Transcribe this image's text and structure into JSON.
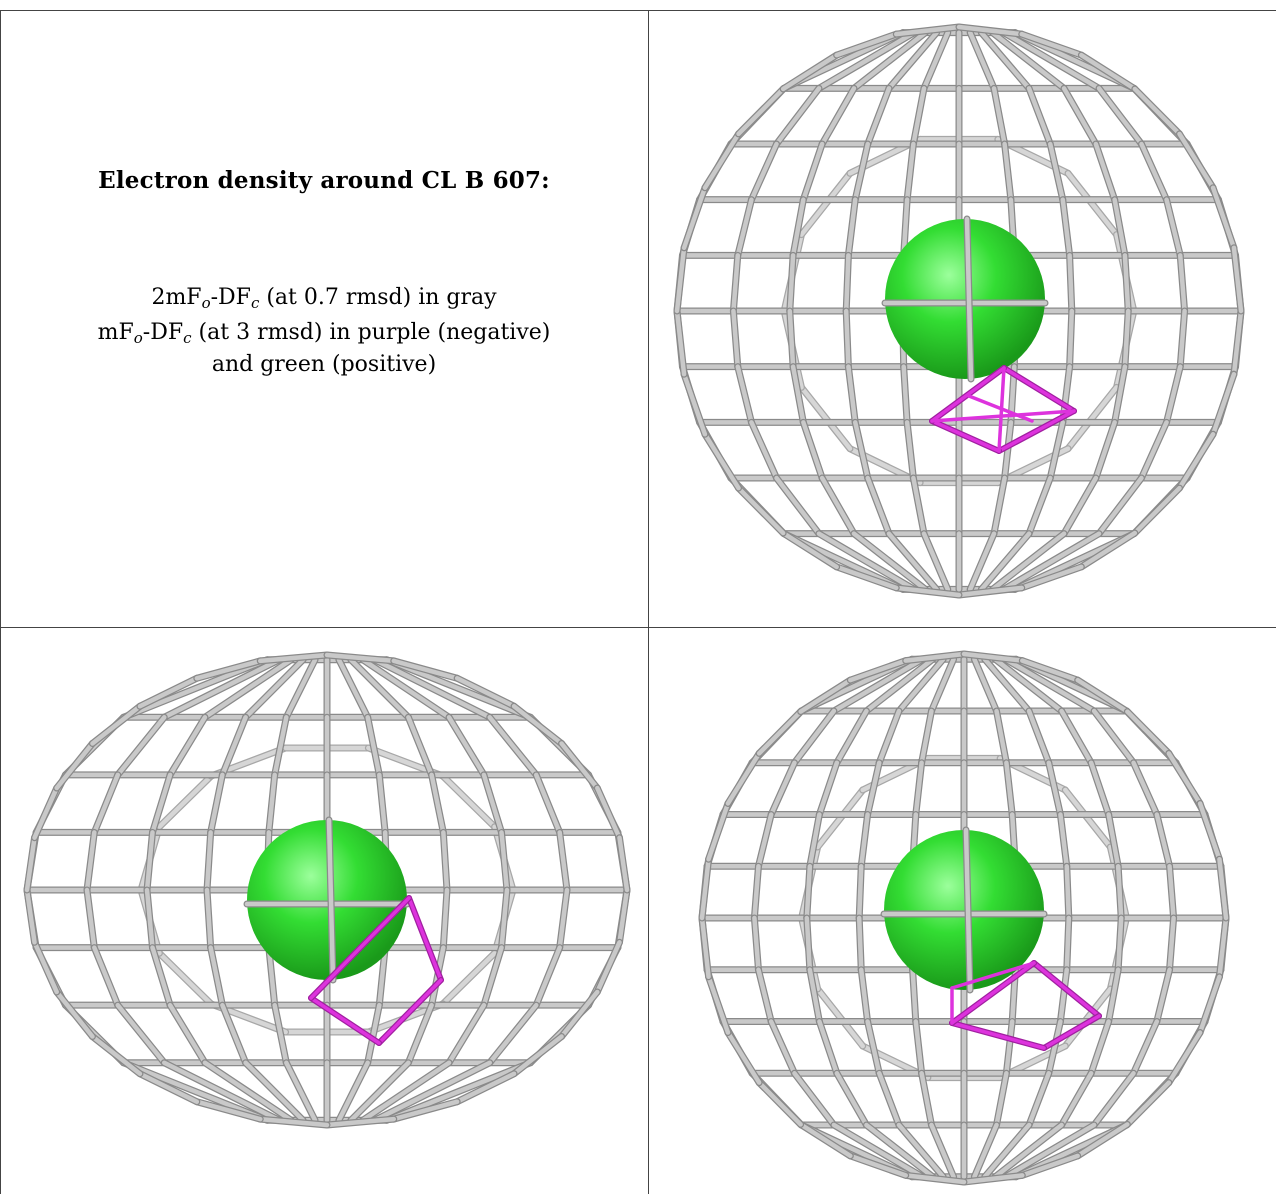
{
  "caption": {
    "title": "Electron density around CL B 607:",
    "line1": {
      "a": "2mF",
      "sub1": "o",
      "b": "-DF",
      "sub2": "c",
      "c": " (at 0.7 rmsd) in gray"
    },
    "line2": {
      "a": "mF",
      "sub1": "o",
      "b": "-DF",
      "sub2": "c",
      "c": " (at 3 rmsd) in purple (negative)"
    },
    "line3": "and green (positive)"
  },
  "colors": {
    "mesh": "#c9c9c9",
    "mesh_shadow": "#8a8a8a",
    "atom": "#33dd33",
    "negative_density": "#dd33dd",
    "border": "#444444"
  },
  "views": [
    {
      "name": "view-top-right"
    },
    {
      "name": "view-bottom-left"
    },
    {
      "name": "view-bottom-right"
    }
  ]
}
